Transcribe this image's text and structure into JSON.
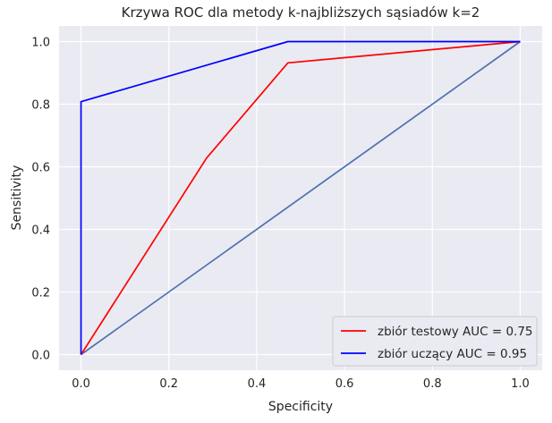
{
  "chart_data": {
    "type": "line",
    "title": "Krzywa ROC dla metody k-najbliższych sąsiadów k=2",
    "xlabel": "Specificity",
    "ylabel": "Sensitivity",
    "xlim": [
      -0.05,
      1.05
    ],
    "ylim": [
      -0.05,
      1.05
    ],
    "xticks": [
      "0.0",
      "0.2",
      "0.4",
      "0.6",
      "0.8",
      "1.0"
    ],
    "yticks": [
      "0.0",
      "0.2",
      "0.4",
      "0.6",
      "0.8",
      "1.0"
    ],
    "grid": true,
    "legend_position": "lower-right",
    "series": [
      {
        "name": "zbiór testowy AUC = 0.75",
        "color": "#ff0000",
        "x": [
          0.0,
          0.286,
          0.471,
          1.0
        ],
        "y": [
          0.0,
          0.628,
          0.932,
          1.0
        ]
      },
      {
        "name": "zbiór uczący AUC = 0.95",
        "color": "#0000ff",
        "x": [
          0.0,
          0.0,
          0.471,
          1.0
        ],
        "y": [
          0.0,
          0.808,
          1.0,
          1.0
        ]
      },
      {
        "color": "#4c72b0",
        "x": [
          0.0,
          1.0
        ],
        "y": [
          0.0,
          1.0
        ]
      }
    ],
    "colors": {
      "plot_background": "#eaeaf2",
      "grid": "#ffffff"
    }
  }
}
